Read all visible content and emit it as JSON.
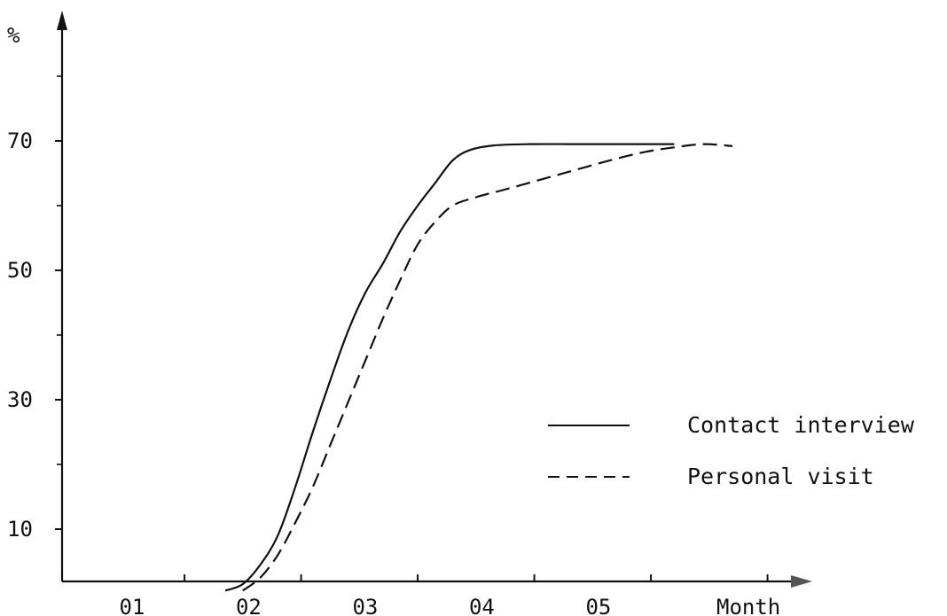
{
  "chart_data": {
    "type": "line",
    "xlabel": "Month",
    "ylabel": "%",
    "x_categories": [
      "01",
      "02",
      "03",
      "04",
      "05"
    ],
    "xlim": [
      0,
      6
    ],
    "ylim": [
      0,
      85
    ],
    "y_ticks": [
      10,
      30,
      50,
      70
    ],
    "y_minor_ticks": [
      20,
      40,
      60,
      80
    ],
    "grid": false,
    "legend_position": "right",
    "series": [
      {
        "name": "Contact interview",
        "style": "solid",
        "color": "#111111",
        "points": [
          [
            1.4,
            0.5
          ],
          [
            1.55,
            1.5
          ],
          [
            1.7,
            4.5
          ],
          [
            1.85,
            9.0
          ],
          [
            2.0,
            16.5
          ],
          [
            2.15,
            25.0
          ],
          [
            2.3,
            33.0
          ],
          [
            2.45,
            40.5
          ],
          [
            2.6,
            46.5
          ],
          [
            2.75,
            51.0
          ],
          [
            2.9,
            56.0
          ],
          [
            3.05,
            60.0
          ],
          [
            3.2,
            63.5
          ],
          [
            3.35,
            67.0
          ],
          [
            3.5,
            68.6
          ],
          [
            3.7,
            69.3
          ],
          [
            4.0,
            69.5
          ],
          [
            4.5,
            69.5
          ],
          [
            5.0,
            69.5
          ],
          [
            5.25,
            69.5
          ]
        ]
      },
      {
        "name": "Personal visit",
        "style": "dashed",
        "color": "#111111",
        "points": [
          [
            1.55,
            0.5
          ],
          [
            1.7,
            2.5
          ],
          [
            1.85,
            6.0
          ],
          [
            2.0,
            11.0
          ],
          [
            2.15,
            16.5
          ],
          [
            2.3,
            23.0
          ],
          [
            2.45,
            29.5
          ],
          [
            2.6,
            36.0
          ],
          [
            2.75,
            42.5
          ],
          [
            2.9,
            48.5
          ],
          [
            3.05,
            54.0
          ],
          [
            3.2,
            57.5
          ],
          [
            3.35,
            60.0
          ],
          [
            3.55,
            61.3
          ],
          [
            3.8,
            62.5
          ],
          [
            4.1,
            64.0
          ],
          [
            4.4,
            65.5
          ],
          [
            4.7,
            67.0
          ],
          [
            5.0,
            68.3
          ],
          [
            5.25,
            69.0
          ],
          [
            5.5,
            69.5
          ],
          [
            5.75,
            69.2
          ]
        ]
      }
    ]
  }
}
